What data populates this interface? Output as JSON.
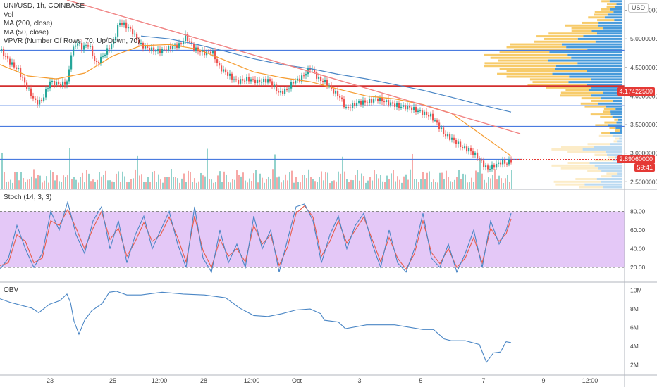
{
  "legend": {
    "symbol": "UNI/USD, 1h, COINBASE",
    "vol": "Vol",
    "ma200": "MA (200, close)",
    "ma50": "MA (50, close)",
    "vpvr": "VPVR (Number Of Rows, 70, Up/Down, 70)"
  },
  "currency_button": "USD",
  "price_badges": {
    "resistance": "4.17422500",
    "last": "2.89060000",
    "countdown": "59:41"
  },
  "panes": {
    "stoch": "Stoch (14, 3, 3)",
    "obv": "OBV"
  },
  "colors": {
    "up": "#26a69a",
    "down": "#ef5350",
    "ma200": "#4a86c5",
    "ma50": "#f59b2e",
    "trendline": "#f08080",
    "hline": "#4a7be0",
    "stoch_k": "#4a86c5",
    "stoch_d": "#e85c4a",
    "stoch_band": "#e4c8f7",
    "obv": "#4a86c5",
    "vp_up": "#f7c862",
    "vp_down": "#3d95d8"
  },
  "chart_data": [
    {
      "type": "candlestick",
      "title": "UNI/USD, 1h, COINBASE",
      "x_ticks": [
        "23",
        "25",
        "12:00",
        "28",
        "12:00",
        "Oct",
        "3",
        "5",
        "7",
        "9",
        "12:00"
      ],
      "y_ticks": [
        5.5,
        5.0,
        4.5,
        4.0,
        3.5,
        3.0,
        2.5
      ],
      "y_tick_labels": [
        "5.50000000",
        "5.00000000",
        "4.50000000",
        "4.00000000",
        "3.50000000",
        "3.00000000",
        "2.50000000"
      ],
      "ylim": [
        2.38,
        5.68
      ],
      "horizontal_levels": [
        4.8,
        4.174225,
        3.83,
        3.47,
        2.8906
      ],
      "last_price": 2.8906,
      "series": [
        {
          "name": "Price",
          "x": [
            0,
            12,
            25,
            35,
            50,
            58,
            70,
            85,
            95,
            100,
            108,
            115,
            125,
            135,
            150,
            160,
            168,
            175,
            185,
            198,
            210,
            225,
            240,
            255,
            262,
            275,
            290,
            300,
            310,
            320,
            335,
            350,
            365,
            380,
            395,
            405,
            415,
            425,
            440,
            450,
            460,
            470,
            480,
            490,
            505,
            520,
            535,
            550,
            565,
            580,
            595,
            610,
            620,
            630,
            640,
            655,
            665,
            675,
            690,
            700,
            710,
            718,
            725
          ],
          "values": [
            4.8,
            4.6,
            4.45,
            4.2,
            3.88,
            3.92,
            4.25,
            4.2,
            4.25,
            4.75,
            4.95,
            4.85,
            4.9,
            4.55,
            4.78,
            4.95,
            5.3,
            5.25,
            5.15,
            4.9,
            4.82,
            4.78,
            4.85,
            4.9,
            5.05,
            4.82,
            4.75,
            4.78,
            4.5,
            4.4,
            4.25,
            4.3,
            4.25,
            4.28,
            4.05,
            4.1,
            4.25,
            4.3,
            4.5,
            4.3,
            4.25,
            4.1,
            4.0,
            3.78,
            3.88,
            3.9,
            3.95,
            3.88,
            3.82,
            3.8,
            3.72,
            3.65,
            3.5,
            3.32,
            3.25,
            3.1,
            3.05,
            2.95,
            2.72,
            2.78,
            2.85,
            2.82,
            2.89
          ]
        },
        {
          "name": "MA (50, close)",
          "x": [
            0,
            40,
            80,
            120,
            160,
            200,
            240,
            280,
            320,
            360,
            400,
            440,
            480,
            520,
            560,
            600,
            640,
            680,
            725
          ],
          "values": [
            4.55,
            4.35,
            4.3,
            4.4,
            4.7,
            4.88,
            4.9,
            4.82,
            4.62,
            4.42,
            4.32,
            4.25,
            4.12,
            4.0,
            3.95,
            3.85,
            3.7,
            3.35,
            2.95
          ]
        },
        {
          "name": "MA (200, close)",
          "x": [
            200,
            240,
            280,
            320,
            360,
            400,
            440,
            480,
            520,
            560,
            600,
            640,
            680,
            725
          ],
          "values": [
            5.05,
            5.0,
            4.9,
            4.78,
            4.65,
            4.55,
            4.48,
            4.38,
            4.3,
            4.2,
            4.1,
            3.98,
            3.85,
            3.72
          ]
        },
        {
          "name": "trendline",
          "x": [
            95,
            738
          ],
          "values": [
            5.68,
            3.34
          ]
        }
      ]
    },
    {
      "type": "line",
      "title": "Stoch (14, 3, 3)",
      "y_ticks": [
        80,
        60,
        40,
        20
      ],
      "ylim": [
        5,
        103
      ],
      "band": [
        20,
        80
      ],
      "series": [
        {
          "name": "%K",
          "x": [
            0,
            12,
            24,
            36,
            48,
            60,
            72,
            84,
            96,
            108,
            120,
            132,
            144,
            156,
            168,
            180,
            192,
            204,
            216,
            228,
            240,
            252,
            264,
            276,
            288,
            300,
            312,
            324,
            336,
            348,
            360,
            372,
            384,
            396,
            408,
            420,
            432,
            444,
            456,
            468,
            480,
            492,
            504,
            516,
            528,
            540,
            552,
            564,
            576,
            588,
            600,
            612,
            624,
            636,
            648,
            660,
            672,
            684,
            696,
            708,
            718,
            725
          ],
          "values": [
            18,
            30,
            65,
            40,
            20,
            35,
            80,
            60,
            90,
            55,
            35,
            70,
            85,
            40,
            70,
            25,
            55,
            75,
            40,
            60,
            80,
            45,
            20,
            85,
            30,
            15,
            60,
            25,
            45,
            20,
            75,
            40,
            60,
            15,
            50,
            85,
            88,
            70,
            25,
            55,
            75,
            40,
            65,
            78,
            45,
            20,
            60,
            25,
            15,
            40,
            78,
            30,
            20,
            45,
            15,
            35,
            60,
            20,
            70,
            45,
            60,
            78
          ]
        },
        {
          "name": "%D",
          "x": [
            0,
            12,
            24,
            36,
            48,
            60,
            72,
            84,
            96,
            108,
            120,
            132,
            144,
            156,
            168,
            180,
            192,
            204,
            216,
            228,
            240,
            252,
            264,
            276,
            288,
            300,
            312,
            324,
            336,
            348,
            360,
            372,
            384,
            396,
            408,
            420,
            432,
            444,
            456,
            468,
            480,
            492,
            504,
            516,
            528,
            540,
            552,
            564,
            576,
            588,
            600,
            612,
            624,
            636,
            648,
            660,
            672,
            684,
            696,
            708,
            718,
            725
          ],
          "values": [
            22,
            25,
            55,
            48,
            25,
            30,
            70,
            65,
            82,
            62,
            40,
            62,
            80,
            50,
            62,
            32,
            48,
            68,
            48,
            55,
            74,
            52,
            26,
            75,
            38,
            20,
            50,
            32,
            40,
            26,
            65,
            45,
            55,
            22,
            42,
            78,
            86,
            74,
            32,
            48,
            70,
            46,
            60,
            74,
            50,
            26,
            52,
            30,
            18,
            35,
            70,
            36,
            24,
            40,
            20,
            30,
            52,
            25,
            62,
            48,
            56,
            72
          ]
        }
      ]
    },
    {
      "type": "line",
      "title": "OBV",
      "y_ticks": [
        10,
        8,
        6,
        4,
        2
      ],
      "y_tick_labels": [
        "10M",
        "8M",
        "6M",
        "4M",
        "2M"
      ],
      "ylim": [
        1.0,
        10.8
      ],
      "series": [
        {
          "name": "OBV",
          "x": [
            0,
            15,
            30,
            45,
            55,
            70,
            85,
            95,
            100,
            105,
            112,
            120,
            130,
            145,
            155,
            165,
            180,
            200,
            230,
            260,
            290,
            320,
            340,
            350,
            360,
            380,
            400,
            420,
            440,
            455,
            460,
            480,
            490,
            520,
            560,
            600,
            615,
            630,
            640,
            660,
            680,
            690,
            700,
            710,
            718,
            725
          ],
          "values": [
            9.1,
            8.7,
            8.4,
            8.1,
            7.6,
            8.5,
            8.9,
            9.6,
            8.7,
            6.7,
            5.3,
            6.8,
            7.8,
            8.6,
            9.8,
            9.9,
            9.5,
            9.5,
            9.8,
            9.6,
            9.5,
            9.2,
            8.1,
            7.7,
            7.3,
            7.2,
            7.5,
            7.9,
            8.0,
            7.5,
            6.8,
            6.6,
            5.9,
            6.3,
            6.3,
            5.8,
            5.8,
            4.8,
            4.6,
            4.6,
            4.2,
            2.3,
            3.3,
            3.4,
            4.5,
            4.4
          ]
        }
      ]
    }
  ]
}
